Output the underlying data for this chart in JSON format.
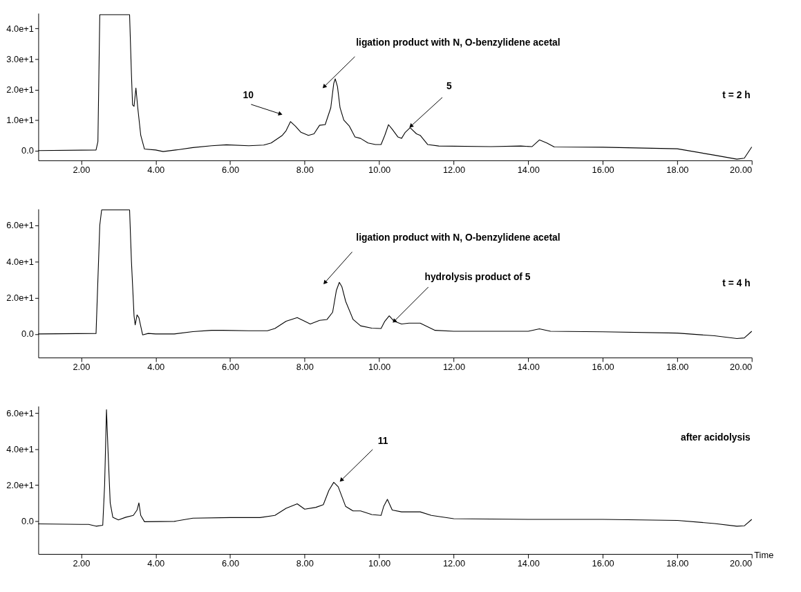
{
  "chart_data": [
    {
      "type": "line",
      "color": "#000000",
      "line_style": "solid",
      "marker": "none",
      "grid": false,
      "x": [
        0.85,
        2.4,
        2.45,
        2.5,
        3.3,
        3.35,
        3.38,
        3.42,
        3.47,
        3.52,
        3.6,
        3.7,
        4.0,
        4.2,
        4.6,
        5.0,
        5.5,
        5.9,
        6.5,
        6.9,
        7.1,
        7.4,
        7.5,
        7.62,
        7.75,
        7.9,
        8.1,
        8.25,
        8.4,
        8.55,
        8.7,
        8.78,
        8.82,
        8.88,
        8.95,
        9.05,
        9.2,
        9.35,
        9.5,
        9.7,
        9.9,
        10.05,
        10.15,
        10.25,
        10.35,
        10.5,
        10.6,
        10.7,
        10.83,
        11.0,
        11.1,
        11.3,
        11.6,
        13.0,
        13.8,
        14.1,
        14.3,
        14.5,
        14.7,
        16.0,
        18.0,
        19.0,
        19.6,
        19.8,
        20.0
      ],
      "values": [
        0,
        0.2,
        3,
        44.5,
        44.5,
        25,
        15,
        14.5,
        20.5,
        14,
        5,
        0.5,
        0.2,
        -0.3,
        0.3,
        1,
        1.6,
        1.9,
        1.6,
        1.8,
        2.5,
        5,
        6.5,
        9.5,
        8,
        6,
        5,
        5.5,
        8.3,
        8.5,
        14,
        22,
        23.5,
        21,
        14,
        10,
        8,
        4.5,
        4,
        2.5,
        2,
        2,
        5,
        8.5,
        7,
        4.5,
        4,
        6,
        7.5,
        5.5,
        5,
        2,
        1.5,
        1.3,
        1.5,
        1.3,
        3.5,
        2.5,
        1.2,
        1.1,
        0.6,
        -1.5,
        -2.8,
        -2.5,
        1.2
      ],
      "xlim": [
        0.85,
        20
      ],
      "xticks": [
        {
          "value": 2,
          "label": "2.00"
        },
        {
          "value": 4,
          "label": "4.00"
        },
        {
          "value": 6,
          "label": "6.00"
        },
        {
          "value": 8,
          "label": "8.00"
        },
        {
          "value": 10,
          "label": "10.00"
        },
        {
          "value": 12,
          "label": "12.00"
        },
        {
          "value": 14,
          "label": "14.00"
        },
        {
          "value": 16,
          "label": "16.00"
        },
        {
          "value": 18,
          "label": "18.00"
        },
        {
          "value": 20,
          "label": "20.00"
        }
      ],
      "ylim": [
        -3.2,
        45
      ],
      "yticks": [
        {
          "value": 0,
          "label": "0.0"
        },
        {
          "value": 10,
          "label": "1.0e+1"
        },
        {
          "value": 20,
          "label": "2.0e+1"
        },
        {
          "value": 30,
          "label": "3.0e+1"
        },
        {
          "value": 40,
          "label": "4.0e+1"
        }
      ],
      "annotations": [
        {
          "text": "10",
          "x": 7.35,
          "y": 12
        },
        {
          "text": "ligation product with N, O-benzylidene acetal",
          "x": 8.52,
          "y": 20.9
        },
        {
          "text": "5",
          "x": 10.85,
          "y": 8
        },
        "t = 2 h"
      ]
    },
    {
      "type": "line",
      "color": "#000000",
      "line_style": "solid",
      "marker": "none",
      "grid": false,
      "x": [
        0.85,
        2.4,
        2.5,
        2.55,
        3.3,
        3.35,
        3.42,
        3.45,
        3.5,
        3.55,
        3.65,
        3.8,
        4.0,
        4.5,
        5.0,
        5.5,
        5.8,
        6.5,
        7.0,
        7.2,
        7.5,
        7.8,
        8.0,
        8.15,
        8.4,
        8.6,
        8.75,
        8.85,
        8.93,
        9.0,
        9.1,
        9.3,
        9.5,
        9.8,
        10.05,
        10.15,
        10.27,
        10.4,
        10.6,
        10.8,
        11.1,
        11.3,
        11.5,
        12.0,
        14.0,
        14.3,
        14.6,
        16.0,
        18.0,
        19.0,
        19.6,
        19.8,
        20.0
      ],
      "values": [
        0,
        0.3,
        60,
        68.5,
        68.5,
        40,
        10,
        5,
        10.5,
        9,
        -0.5,
        0.3,
        0,
        0,
        1.3,
        2,
        2,
        1.8,
        1.8,
        3,
        7,
        9,
        7,
        5.5,
        7.5,
        8,
        12,
        24,
        28.5,
        26,
        18,
        8,
        4.5,
        3.2,
        3,
        7,
        10,
        7,
        5.5,
        6,
        6,
        4,
        2,
        1.5,
        1.5,
        2.8,
        1.5,
        1.2,
        0.5,
        -1,
        -2.5,
        -2.2,
        1.5
      ],
      "xlim": [
        0.85,
        20
      ],
      "xticks": [
        {
          "value": 2,
          "label": "2.00"
        },
        {
          "value": 4,
          "label": "4.00"
        },
        {
          "value": 6,
          "label": "6.00"
        },
        {
          "value": 8,
          "label": "8.00"
        },
        {
          "value": 10,
          "label": "10.00"
        },
        {
          "value": 12,
          "label": "12.00"
        },
        {
          "value": 14,
          "label": "14.00"
        },
        {
          "value": 16,
          "label": "16.00"
        },
        {
          "value": 18,
          "label": "18.00"
        },
        {
          "value": 20,
          "label": "20.00"
        }
      ],
      "ylim": [
        -13,
        69
      ],
      "yticks": [
        {
          "value": 0,
          "label": "0.0"
        },
        {
          "value": 20,
          "label": "2.0e+1"
        },
        {
          "value": 40,
          "label": "4.0e+1"
        },
        {
          "value": 60,
          "label": "6.0e+1"
        }
      ],
      "annotations": [
        {
          "text": "ligation product with N, O-benzylidene acetal",
          "x": 8.54,
          "y": 28.3
        },
        {
          "text": "hydrolysis product of 5",
          "x": 10.4,
          "y": 7
        },
        "t = 4 h"
      ]
    },
    {
      "type": "line",
      "color": "#000000",
      "line_style": "solid",
      "marker": "none",
      "grid": false,
      "x": [
        0.85,
        2.0,
        2.2,
        2.4,
        2.58,
        2.63,
        2.68,
        2.72,
        2.78,
        2.85,
        3.0,
        3.2,
        3.4,
        3.5,
        3.55,
        3.6,
        3.7,
        4.5,
        5.0,
        6.0,
        6.8,
        7.2,
        7.5,
        7.8,
        8.0,
        8.3,
        8.5,
        8.65,
        8.78,
        8.9,
        9.1,
        9.3,
        9.5,
        9.8,
        10.05,
        10.12,
        10.22,
        10.35,
        10.6,
        11.1,
        11.4,
        12.0,
        14.0,
        16.0,
        18.0,
        19.0,
        19.6,
        19.8,
        20.0
      ],
      "values": [
        -1.7,
        -2,
        -2,
        -3,
        -2.5,
        20,
        62,
        40,
        10,
        2,
        0.5,
        2,
        3,
        6,
        10,
        3,
        -0.5,
        -0.3,
        1.5,
        1.8,
        1.8,
        3,
        7,
        9.5,
        6.5,
        7.5,
        9,
        17,
        21.5,
        19,
        8,
        5.5,
        5.5,
        3.5,
        3,
        8,
        12,
        6,
        5,
        5,
        3,
        1.2,
        0.8,
        0.8,
        0.2,
        -1.5,
        -3,
        -2.8,
        0.8
      ],
      "xlim": [
        0.85,
        20
      ],
      "xticks": [
        {
          "value": 2,
          "label": "2.00"
        },
        {
          "value": 4,
          "label": "4.00"
        },
        {
          "value": 6,
          "label": "6.00"
        },
        {
          "value": 8,
          "label": "8.00"
        },
        {
          "value": 10,
          "label": "10.00"
        },
        {
          "value": 12,
          "label": "12.00"
        },
        {
          "value": 14,
          "label": "14.00"
        },
        {
          "value": 16,
          "label": "16.00"
        },
        {
          "value": 18,
          "label": "18.00"
        },
        {
          "value": 20,
          "label": "20.00"
        }
      ],
      "ylim": [
        -18.5,
        64
      ],
      "yticks": [
        {
          "value": 0,
          "label": "0.0"
        },
        {
          "value": 20,
          "label": "2.0e+1"
        },
        {
          "value": 40,
          "label": "4.0e+1"
        },
        {
          "value": 60,
          "label": "6.0e+1"
        }
      ],
      "xlabel": "Time",
      "annotations": [
        {
          "text": "11",
          "x": 8.98,
          "y": 22.6
        },
        "after acidolysis"
      ]
    }
  ]
}
